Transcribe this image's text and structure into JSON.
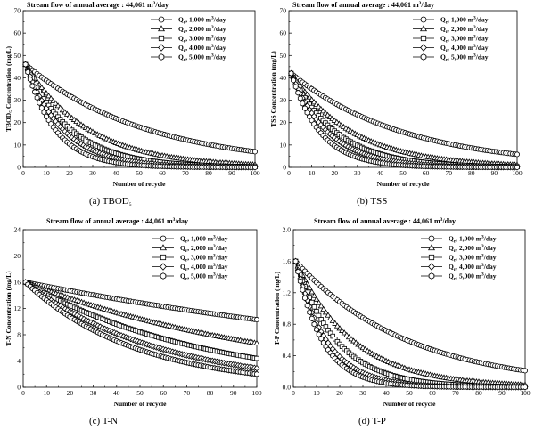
{
  "chart_data": [
    {
      "id": "a",
      "type": "line",
      "caption": "(a)  TBOD",
      "caption_sub": "5",
      "title": "Stream flow of annual average : 44,061 m",
      "title_sup": "3",
      "title_tail": "/day",
      "ylabel": "TBOD",
      "ylabel_sub": "5",
      "ylabel_tail": " Concentration (mg/L)",
      "xlabel": "Number of recycle",
      "xlim": [
        0,
        100
      ],
      "ylim": [
        0,
        70
      ],
      "xticks": [
        0,
        10,
        20,
        30,
        40,
        50,
        60,
        70,
        80,
        90,
        100
      ],
      "yticks": [
        0,
        10,
        20,
        30,
        40,
        50,
        60,
        70
      ],
      "legend_position": "top-right",
      "y0": 46,
      "series": [
        {
          "name": "Q",
          "name_sub": "r",
          "name_tail": ", 1,000 m",
          "name_sup": "3",
          "name_end": "/day",
          "marker": "circle",
          "end": 7.0
        },
        {
          "name": "Q",
          "name_sub": "r",
          "name_tail": ", 2,000 m",
          "name_sup": "3",
          "name_end": "/day",
          "marker": "triangle",
          "end": 1.2
        },
        {
          "name": "Q",
          "name_sub": "r",
          "name_tail": ", 3,000 m",
          "name_sup": "3",
          "name_end": "/day",
          "marker": "square",
          "end": 0.3
        },
        {
          "name": "Q",
          "name_sub": "r",
          "name_tail": ", 4,000 m",
          "name_sup": "3",
          "name_end": "/day",
          "marker": "diamond",
          "end": 0.1
        },
        {
          "name": "Q",
          "name_sub": "r",
          "name_tail": ", 5,000 m",
          "name_sup": "3",
          "name_end": "/day",
          "marker": "hexagon",
          "end": 0.02
        }
      ]
    },
    {
      "id": "b",
      "type": "line",
      "caption": "(b)  TSS",
      "caption_sub": "",
      "title": "Stream flow of annual average : 44,061 m",
      "title_sup": "3",
      "title_tail": "/day",
      "ylabel": "TSS Concentration (mg/L)",
      "ylabel_sub": "",
      "ylabel_tail": "",
      "xlabel": "Number of recycle",
      "xlim": [
        0,
        100
      ],
      "ylim": [
        0,
        70
      ],
      "xticks": [
        0,
        10,
        20,
        30,
        40,
        50,
        60,
        70,
        80,
        90,
        100
      ],
      "yticks": [
        0,
        10,
        20,
        30,
        40,
        50,
        60,
        70
      ],
      "legend_position": "top-right",
      "y0": 42,
      "series": [
        {
          "name": "Q",
          "name_sub": "r",
          "name_tail": ", 1,000 m",
          "name_sup": "3",
          "name_end": "/day",
          "marker": "circle",
          "end": 5.8
        },
        {
          "name": "Q",
          "name_sub": "r",
          "name_tail": ", 2,000 m",
          "name_sup": "3",
          "name_end": "/day",
          "marker": "triangle",
          "end": 1.1
        },
        {
          "name": "Q",
          "name_sub": "r",
          "name_tail": ", 3,000 m",
          "name_sup": "3",
          "name_end": "/day",
          "marker": "square",
          "end": 0.3
        },
        {
          "name": "Q",
          "name_sub": "r",
          "name_tail": ", 4,000 m",
          "name_sup": "3",
          "name_end": "/day",
          "marker": "diamond",
          "end": 0.1
        },
        {
          "name": "Q",
          "name_sub": "r",
          "name_tail": ", 5,000 m",
          "name_sup": "3",
          "name_end": "/day",
          "marker": "hexagon",
          "end": 0.02
        }
      ]
    },
    {
      "id": "c",
      "type": "line",
      "caption": "(c)  T-N",
      "caption_sub": "",
      "title": "Stream flow of annual average : 44,061 m",
      "title_sup": "3",
      "title_tail": "/day",
      "ylabel": "T-N Concentration (mg/L)",
      "ylabel_sub": "",
      "ylabel_tail": "",
      "xlabel": "Number of recycle",
      "xlim": [
        0,
        100
      ],
      "ylim": [
        0,
        24
      ],
      "xticks": [
        0,
        10,
        20,
        30,
        40,
        50,
        60,
        70,
        80,
        90,
        100
      ],
      "yticks": [
        0,
        4,
        8,
        12,
        16,
        20,
        24
      ],
      "legend_position": "top-right",
      "y0": 16,
      "series": [
        {
          "name": "Q",
          "name_sub": "r",
          "name_tail": ", 1,000 m",
          "name_sup": "3",
          "name_end": "/day",
          "marker": "circle",
          "end": 10.3
        },
        {
          "name": "Q",
          "name_sub": "r",
          "name_tail": ", 2,000 m",
          "name_sup": "3",
          "name_end": "/day",
          "marker": "triangle",
          "end": 6.7
        },
        {
          "name": "Q",
          "name_sub": "r",
          "name_tail": ", 3,000 m",
          "name_sup": "3",
          "name_end": "/day",
          "marker": "square",
          "end": 4.4
        },
        {
          "name": "Q",
          "name_sub": "r",
          "name_tail": ", 4,000 m",
          "name_sup": "3",
          "name_end": "/day",
          "marker": "diamond",
          "end": 2.9
        },
        {
          "name": "Q",
          "name_sub": "r",
          "name_tail": ", 5,000 m",
          "name_sup": "3",
          "name_end": "/day",
          "marker": "hexagon",
          "end": 2.0
        }
      ]
    },
    {
      "id": "d",
      "type": "line",
      "caption": "(d)  T-P",
      "caption_sub": "",
      "title": "Stream flow of annual average : 44,061 m",
      "title_sup": "3",
      "title_tail": "/day",
      "ylabel": "T-P Concentration (mg/L)",
      "ylabel_sub": "",
      "ylabel_tail": "",
      "xlabel": "Number of recycle",
      "xlim": [
        0,
        100
      ],
      "ylim": [
        0,
        2.0
      ],
      "xticks": [
        0,
        10,
        20,
        30,
        40,
        50,
        60,
        70,
        80,
        90,
        100
      ],
      "yticks": [
        "0.0",
        "0.4",
        "0.8",
        "1.2",
        "1.6",
        "2.0"
      ],
      "legend_position": "top-right",
      "y0": 1.6,
      "series": [
        {
          "name": "Q",
          "name_sub": "r",
          "name_tail": ", 1,000 m",
          "name_sup": "3",
          "name_end": "/day",
          "marker": "circle",
          "end": 0.21
        },
        {
          "name": "Q",
          "name_sub": "r",
          "name_tail": ", 2,000 m",
          "name_sup": "3",
          "name_end": "/day",
          "marker": "triangle",
          "end": 0.03
        },
        {
          "name": "Q",
          "name_sub": "r",
          "name_tail": ", 3,000 m",
          "name_sup": "3",
          "name_end": "/day",
          "marker": "square",
          "end": 0.006
        },
        {
          "name": "Q",
          "name_sub": "r",
          "name_tail": ", 4,000 m",
          "name_sup": "3",
          "name_end": "/day",
          "marker": "diamond",
          "end": 0.001
        },
        {
          "name": "Q",
          "name_sub": "r",
          "name_tail": ", 5,000 m",
          "name_sup": "3",
          "name_end": "/day",
          "marker": "hexagon",
          "end": 0.0003
        }
      ]
    }
  ]
}
